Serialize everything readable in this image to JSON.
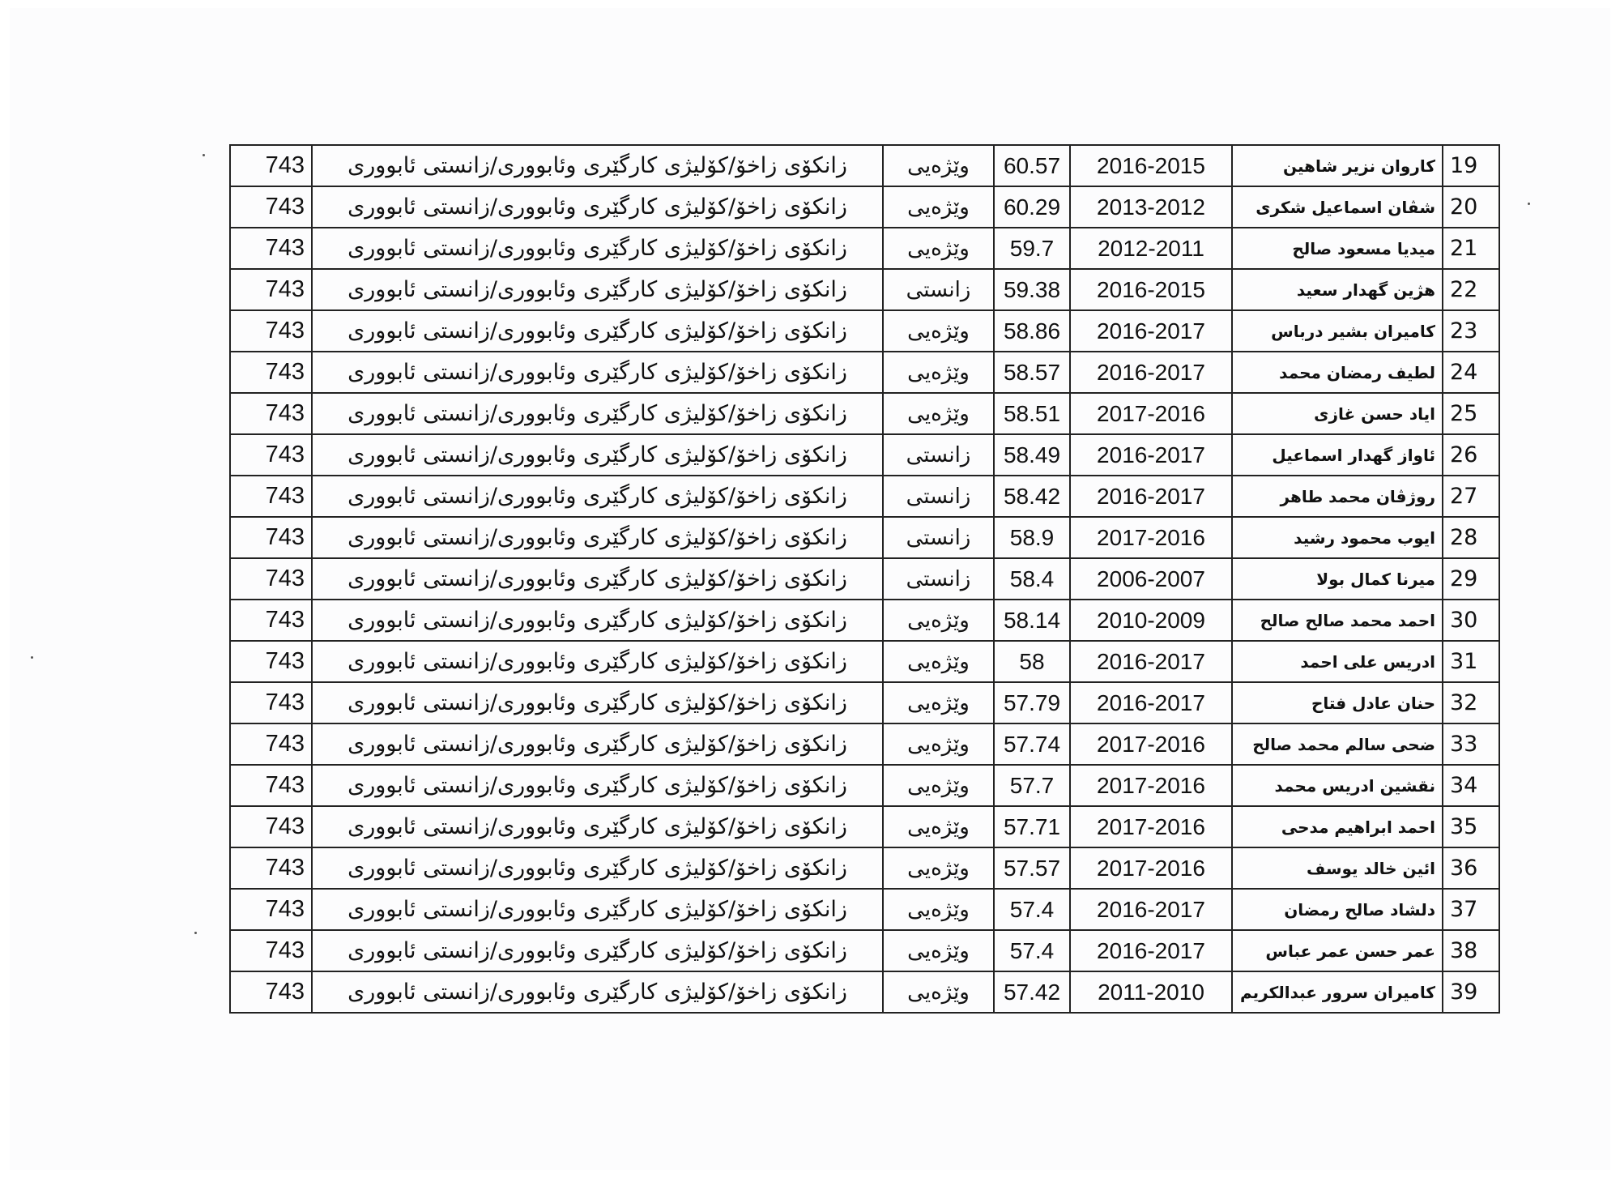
{
  "table": {
    "rows": [
      {
        "no": "19",
        "name": "كاروان نزير شاهين",
        "year": "2016-2015",
        "score": "60.57",
        "type": "وێژەیی",
        "dept": "زانکۆی زاخۆ/کۆلیژی کارگێری وئابووری/زانستی ئابووری",
        "code": "743"
      },
      {
        "no": "20",
        "name": "شڤان اسماعيل شكرى",
        "year": "2013-2012",
        "score": "60.29",
        "type": "وێژەیی",
        "dept": "زانکۆی زاخۆ/کۆلیژی کارگێری وئابووری/زانستی ئابووری",
        "code": "743"
      },
      {
        "no": "21",
        "name": "ميديا مسعود صالح",
        "year": "2012-2011",
        "score": "59.7",
        "type": "وێژەیی",
        "dept": "زانکۆی زاخۆ/کۆلیژی کارگێری وئابووری/زانستی ئابووری",
        "code": "743"
      },
      {
        "no": "22",
        "name": "هژين گهدار سعيد",
        "year": "2016-2015",
        "score": "59.38",
        "type": "زانستی",
        "dept": "زانکۆی زاخۆ/کۆلیژی کارگێری وئابووری/زانستی ئابووری",
        "code": "743"
      },
      {
        "no": "23",
        "name": "كاميران بشير درباس",
        "year": "2016-2017",
        "score": "58.86",
        "type": "وێژەیی",
        "dept": "زانکۆی زاخۆ/کۆلیژی کارگێری وئابووری/زانستی ئابووری",
        "code": "743"
      },
      {
        "no": "24",
        "name": "لطيف رمضان محمد",
        "year": "2016-2017",
        "score": "58.57",
        "type": "وێژەیی",
        "dept": "زانکۆی زاخۆ/کۆلیژی کارگێری وئابووری/زانستی ئابووری",
        "code": "743"
      },
      {
        "no": "25",
        "name": "اياد حسن غازى",
        "year": "2017-2016",
        "score": "58.51",
        "type": "وێژەیی",
        "dept": "زانکۆی زاخۆ/کۆلیژی کارگێری وئابووری/زانستی ئابووری",
        "code": "743"
      },
      {
        "no": "26",
        "name": "ئاواز گهدار اسماعيل",
        "year": "2016-2017",
        "score": "58.49",
        "type": "زانستی",
        "dept": "زانکۆی زاخۆ/کۆلیژی کارگێری وئابووری/زانستی ئابووری",
        "code": "743"
      },
      {
        "no": "27",
        "name": "روژڤان محمد طاهر",
        "year": "2016-2017",
        "score": "58.42",
        "type": "زانستی",
        "dept": "زانکۆی زاخۆ/کۆلیژی کارگێری وئابووری/زانستی ئابووری",
        "code": "743"
      },
      {
        "no": "28",
        "name": "ايوب محمود رشيد",
        "year": "2017-2016",
        "score": "58.9",
        "type": "زانستی",
        "dept": "زانکۆی زاخۆ/کۆلیژی کارگێری وئابووری/زانستی ئابووری",
        "code": "743"
      },
      {
        "no": "29",
        "name": "ميرنا كمال بولا",
        "year": "2006-2007",
        "score": "58.4",
        "type": "زانستی",
        "dept": "زانکۆی زاخۆ/کۆلیژی کارگێری وئابووری/زانستی ئابووری",
        "code": "743"
      },
      {
        "no": "30",
        "name": "احمد محمد صالح صالح",
        "year": "2010-2009",
        "score": "58.14",
        "type": "وێژەیی",
        "dept": "زانکۆی زاخۆ/کۆلیژی کارگێری وئابووری/زانستی ئابووری",
        "code": "743"
      },
      {
        "no": "31",
        "name": "ادريس على احمد",
        "year": "2016-2017",
        "score": "58",
        "type": "وێژەیی",
        "dept": "زانکۆی زاخۆ/کۆلیژی کارگێری وئابووری/زانستی ئابووری",
        "code": "743"
      },
      {
        "no": "32",
        "name": "حنان  عادل فتاح",
        "year": "2016-2017",
        "score": "57.79",
        "type": "وێژەیی",
        "dept": "زانکۆی زاخۆ/کۆلیژی کارگێری وئابووری/زانستی ئابووری",
        "code": "743"
      },
      {
        "no": "33",
        "name": "ضحى سالم محمد صالح",
        "year": "2017-2016",
        "score": "57.74",
        "type": "وێژەیی",
        "dept": "زانکۆی زاخۆ/کۆلیژی کارگێری وئابووری/زانستی ئابووری",
        "code": "743"
      },
      {
        "no": "34",
        "name": "نقشين ادريس محمد",
        "year": "2017-2016",
        "score": "57.7",
        "type": "وێژەیی",
        "dept": "زانکۆی زاخۆ/کۆلیژی کارگێری وئابووری/زانستی ئابووری",
        "code": "743"
      },
      {
        "no": "35",
        "name": "احمد  ابراهيم مدحى",
        "year": "2017-2016",
        "score": "57.71",
        "type": "وێژەیی",
        "dept": "زانکۆی زاخۆ/کۆلیژی کارگێری وئابووری/زانستی ئابووری",
        "code": "743"
      },
      {
        "no": "36",
        "name": "ائين خالد يوسف",
        "year": "2017-2016",
        "score": "57.57",
        "type": "وێژەیی",
        "dept": "زانکۆی زاخۆ/کۆلیژی کارگێری وئابووری/زانستی ئابووری",
        "code": "743"
      },
      {
        "no": "37",
        "name": "دلشاد صالح رمضان",
        "year": "2016-2017",
        "score": "57.4",
        "type": "وێژەیی",
        "dept": "زانکۆی زاخۆ/کۆلیژی کارگێری وئابووری/زانستی ئابووری",
        "code": "743"
      },
      {
        "no": "38",
        "name": "عمر حسن عمر عباس",
        "year": "2016-2017",
        "score": "57.4",
        "type": "وێژەیی",
        "dept": "زانکۆی زاخۆ/کۆلیژی کارگێری وئابووری/زانستی ئابووری",
        "code": "743"
      },
      {
        "no": "39",
        "name": "كاميران سرور عبدالكريم",
        "year": "2011-2010",
        "score": "57.42",
        "type": "وێژەیی",
        "dept": "زانکۆی زاخۆ/کۆلیژی کارگێری وئابووری/زانستی ئابووری",
        "code": "743"
      }
    ]
  }
}
